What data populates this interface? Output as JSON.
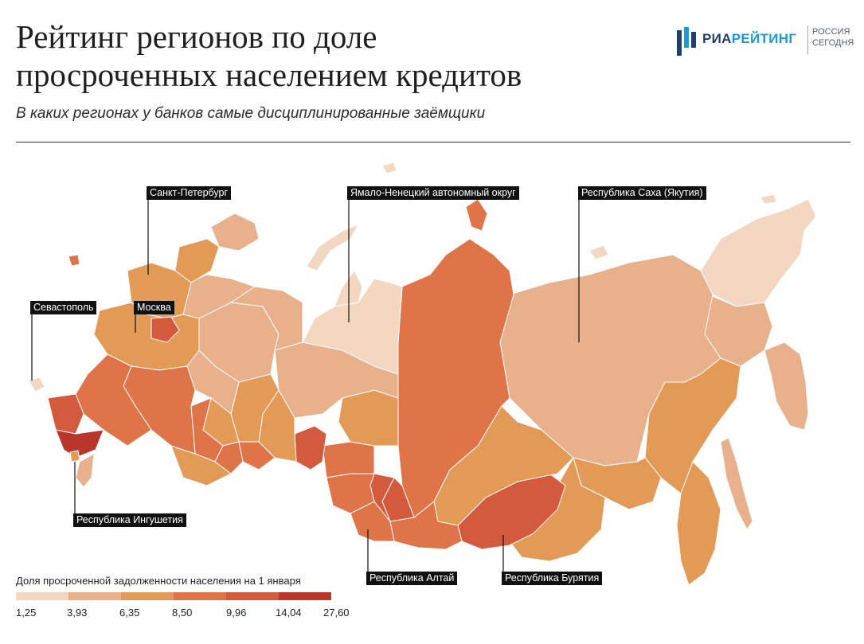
{
  "header": {
    "title_line1": "Рейтинг регионов по доле",
    "title_line2": "просроченных населением кредитов",
    "subtitle": "В каких регионах у банков самые дисциплинированные заёмщики"
  },
  "logo": {
    "ria_part1": "РИА",
    "ria_part2": "РЕЙТИНГ",
    "ros_line1": "РОССИЯ",
    "ros_line2": "СЕГОДНЯ",
    "colors": {
      "dark_blue": "#1f3f6e",
      "light_blue": "#1a9ad6"
    }
  },
  "callouts": {
    "spb": "Санкт-Петербург",
    "yamal": "Ямало-Ненецкий автономный округ",
    "yakutia": "Республика Саха (Якутия)",
    "sevastopol": "Севастополь",
    "moscow": "Москва",
    "ingushetia": "Республика Ингушетия",
    "altai": "Республика Алтай",
    "buryatia": "Республика Бурятия"
  },
  "legend": {
    "title": "Доля просроченной задолженности населения на 1 января",
    "colors": [
      "#f3d7c1",
      "#e9b08c",
      "#e29a56",
      "#df7448",
      "#d35a3c",
      "#b8372a"
    ],
    "ticks": [
      "1,25",
      "3,93",
      "6,35",
      "8,50",
      "9,96",
      "14,04",
      "27,60"
    ]
  },
  "regions": {
    "colors": {
      "lightest": "#f3d7c1",
      "light": "#e9b08c",
      "medium": "#e29a56",
      "medium_dark": "#df7448",
      "dark": "#d35a3c",
      "darkest": "#b8372a"
    }
  }
}
